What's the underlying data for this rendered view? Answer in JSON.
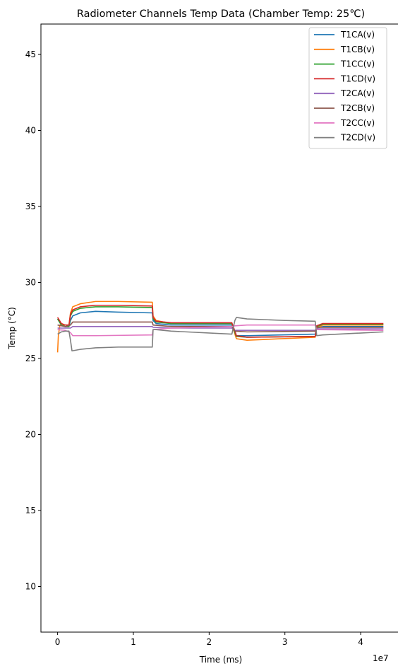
{
  "chart_data": {
    "type": "line",
    "title": "Radiometer Channels Temp Data (Chamber Temp: 25℃)",
    "xlabel": "Time (ms)",
    "ylabel": "Temp (°C)",
    "x_offset_text": "1e7",
    "xlim": [
      -2200000,
      45300000
    ],
    "ylim": [
      7,
      47
    ],
    "x_ticks": [
      0,
      10000000,
      20000000,
      30000000,
      40000000
    ],
    "x_tick_labels": [
      "0",
      "1",
      "2",
      "3",
      "4"
    ],
    "y_ticks": [
      10,
      15,
      20,
      25,
      30,
      35,
      40,
      45
    ],
    "y_tick_labels": [
      "10",
      "15",
      "20",
      "25",
      "30",
      "35",
      "40",
      "45"
    ],
    "grid": false,
    "legend_position": "top-right",
    "series": [
      {
        "name": "T1CA(v)",
        "color": "#1f77b4",
        "x": [
          0,
          500000,
          1000000,
          1500000,
          1700000,
          2000000,
          3000000,
          5000000,
          8000000,
          12500000,
          12600000,
          13000000,
          15000000,
          23000000,
          23400000,
          23600000,
          25000000,
          34000000,
          34200000,
          35000000,
          43000000
        ],
        "y": [
          27.6,
          27.2,
          27.1,
          27.1,
          27.5,
          27.8,
          28.0,
          28.1,
          28.05,
          28.0,
          27.5,
          27.3,
          27.2,
          27.2,
          26.8,
          26.5,
          26.5,
          26.6,
          27.0,
          27.1,
          27.1
        ]
      },
      {
        "name": "T1CB(v)",
        "color": "#ff7f0e",
        "x": [
          0,
          100000,
          300000,
          600000,
          1000000,
          1500000,
          1700000,
          2000000,
          3000000,
          5000000,
          8000000,
          12500000,
          12600000,
          13000000,
          15000000,
          23000000,
          23400000,
          23600000,
          25000000,
          34000000,
          34200000,
          35000000,
          43000000
        ],
        "y": [
          25.4,
          26.5,
          27.2,
          27.2,
          27.2,
          27.2,
          28.0,
          28.4,
          28.6,
          28.75,
          28.75,
          28.7,
          27.8,
          27.5,
          27.3,
          27.3,
          26.6,
          26.3,
          26.2,
          26.4,
          27.0,
          27.2,
          27.2
        ]
      },
      {
        "name": "T1CC(v)",
        "color": "#2ca02c",
        "x": [
          0,
          500000,
          1000000,
          1500000,
          1700000,
          2000000,
          3000000,
          5000000,
          8000000,
          12500000,
          12600000,
          13000000,
          15000000,
          23000000,
          23400000,
          23600000,
          25000000,
          34000000,
          34200000,
          35000000,
          43000000
        ],
        "y": [
          27.6,
          27.2,
          27.1,
          27.1,
          27.8,
          28.1,
          28.3,
          28.4,
          28.4,
          28.35,
          27.6,
          27.4,
          27.3,
          27.3,
          26.7,
          26.45,
          26.4,
          26.45,
          27.1,
          27.25,
          27.25
        ]
      },
      {
        "name": "T1CD(v)",
        "color": "#d62728",
        "x": [
          0,
          500000,
          1000000,
          1500000,
          1700000,
          2000000,
          3000000,
          5000000,
          8000000,
          12500000,
          12600000,
          13000000,
          15000000,
          23000000,
          23400000,
          23600000,
          25000000,
          34000000,
          34200000,
          35000000,
          43000000
        ],
        "y": [
          27.7,
          27.3,
          27.2,
          27.2,
          27.9,
          28.2,
          28.4,
          28.5,
          28.5,
          28.45,
          27.7,
          27.45,
          27.35,
          27.35,
          26.8,
          26.5,
          26.4,
          26.45,
          27.15,
          27.3,
          27.3
        ]
      },
      {
        "name": "T2CA(v)",
        "color": "#9467bd",
        "x": [
          0,
          1000000,
          1700000,
          2000000,
          5000000,
          12500000,
          12600000,
          15000000,
          23000000,
          23400000,
          25000000,
          34000000,
          34200000,
          43000000
        ],
        "y": [
          27.0,
          27.0,
          27.0,
          27.1,
          27.1,
          27.1,
          27.05,
          27.0,
          27.0,
          26.85,
          26.85,
          26.85,
          26.95,
          26.95
        ]
      },
      {
        "name": "T2CB(v)",
        "color": "#8c564b",
        "x": [
          0,
          1000000,
          1700000,
          2000000,
          5000000,
          12500000,
          12600000,
          15000000,
          23000000,
          23400000,
          25000000,
          34000000,
          34200000,
          43000000
        ],
        "y": [
          27.2,
          27.1,
          27.2,
          27.4,
          27.4,
          27.4,
          27.2,
          27.1,
          27.1,
          26.8,
          26.75,
          26.8,
          27.05,
          27.05
        ]
      },
      {
        "name": "T2CC(v)",
        "color": "#e377c2",
        "x": [
          0,
          1000000,
          1700000,
          2000000,
          5000000,
          12500000,
          12600000,
          15000000,
          23000000,
          23400000,
          25000000,
          34000000,
          34200000,
          43000000
        ],
        "y": [
          26.9,
          26.85,
          26.7,
          26.5,
          26.5,
          26.55,
          26.9,
          27.0,
          27.1,
          27.15,
          27.2,
          27.2,
          26.9,
          26.85
        ]
      },
      {
        "name": "T2CD(v)",
        "color": "#7f7f7f",
        "x": [
          0,
          500000,
          1000000,
          1500000,
          1700000,
          1900000,
          3000000,
          5000000,
          8000000,
          12500000,
          12600000,
          13000000,
          15000000,
          23000000,
          23400000,
          23600000,
          25000000,
          30000000,
          34000000,
          34200000,
          35000000,
          43000000
        ],
        "y": [
          26.6,
          26.75,
          26.8,
          26.8,
          26.2,
          25.5,
          25.6,
          25.7,
          25.75,
          25.75,
          26.9,
          26.9,
          26.8,
          26.6,
          27.5,
          27.7,
          27.6,
          27.5,
          27.45,
          26.5,
          26.55,
          26.75
        ]
      }
    ]
  }
}
